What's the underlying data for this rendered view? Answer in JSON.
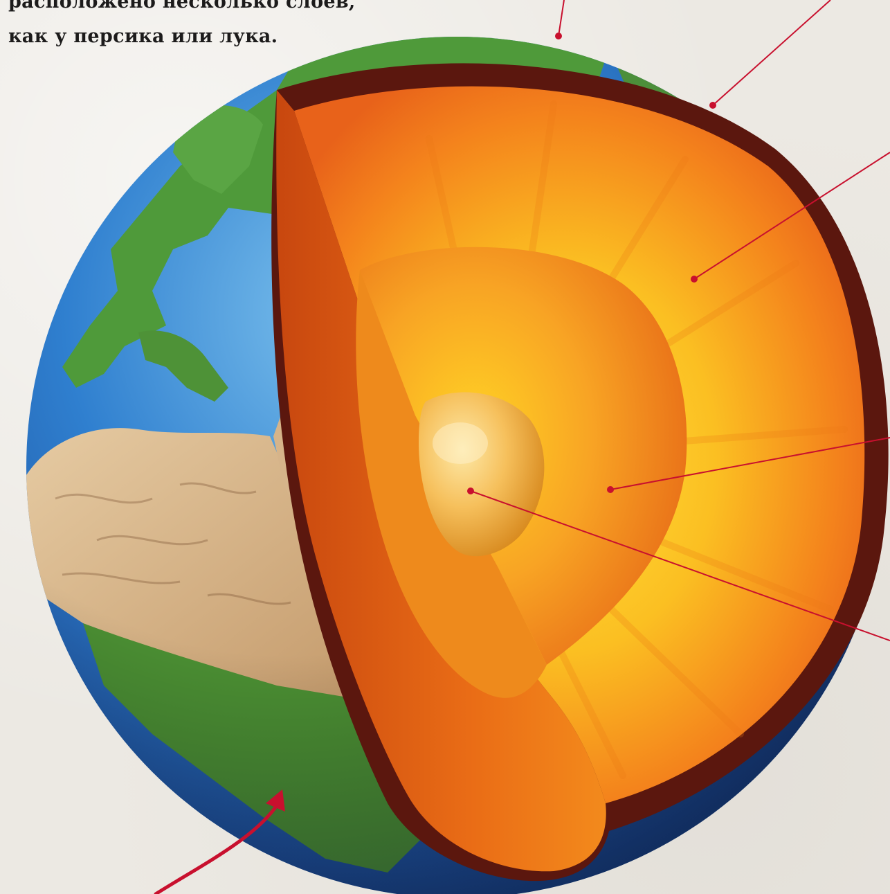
{
  "caption": {
    "line1": "расположено несколько слоев,",
    "line2": "как у персика или лука."
  },
  "layers": [
    {
      "name": "crust",
      "color": "#6d1f13"
    },
    {
      "name": "mantle",
      "color": "#f59a20"
    },
    {
      "name": "outer-core",
      "color": "#f28a1a"
    },
    {
      "name": "inner-core",
      "color": "#f2b456"
    }
  ],
  "colors": {
    "ocean": "#2a6fbf",
    "land_green": "#4f9a3a",
    "desert": "#d9b68c",
    "pointer_line": "#c8102e"
  }
}
